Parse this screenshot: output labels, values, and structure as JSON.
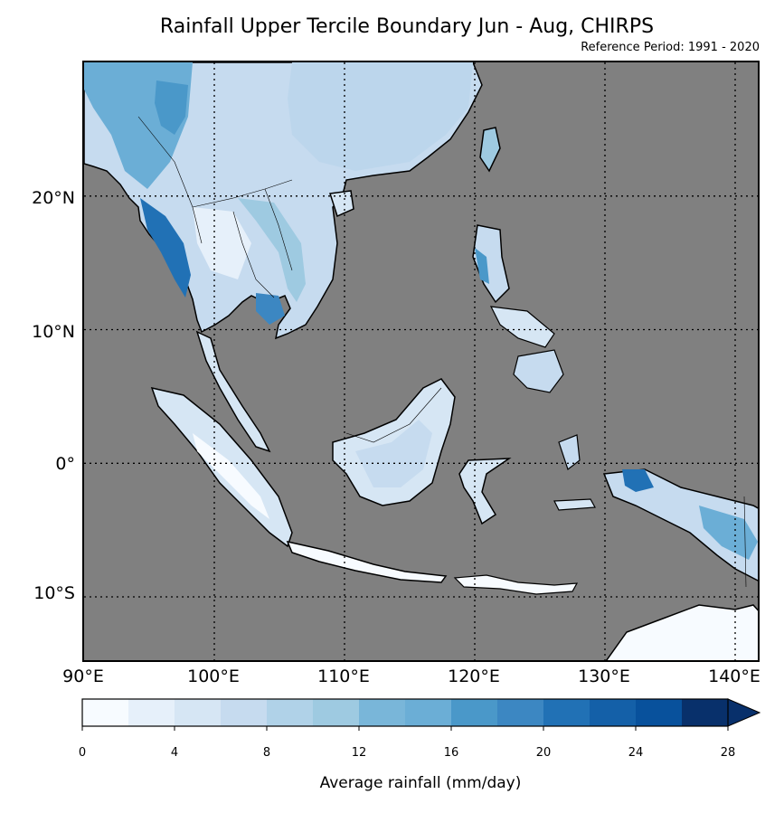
{
  "title": "Rainfall Upper Tercile Boundary Jun - Aug, CHIRPS",
  "subtitle": "Reference Period: 1991 - 2020",
  "lat_labels": [
    "20°N",
    "10°N",
    "0°",
    "10°S"
  ],
  "lon_labels": [
    "90°E",
    "100°E",
    "110°E",
    "120°E",
    "130°E",
    "140°E"
  ],
  "colorbar": {
    "label": "Average rainfall (mm/day)",
    "tick_labels": [
      "0",
      "4",
      "8",
      "12",
      "16",
      "20",
      "24",
      "28"
    ],
    "colors": [
      "#f7fbff",
      "#e6f0fa",
      "#d6e6f4",
      "#c6dbef",
      "#b0d2e8",
      "#9ecae1",
      "#79b6d9",
      "#6baed6",
      "#4a98c9",
      "#3c87c2",
      "#2171b5",
      "#1460a8",
      "#08519c",
      "#08306b"
    ]
  },
  "map": {
    "ocean_color": "#808080",
    "extent_lon": [
      90,
      142
    ],
    "extent_lat": [
      -15,
      30
    ]
  }
}
